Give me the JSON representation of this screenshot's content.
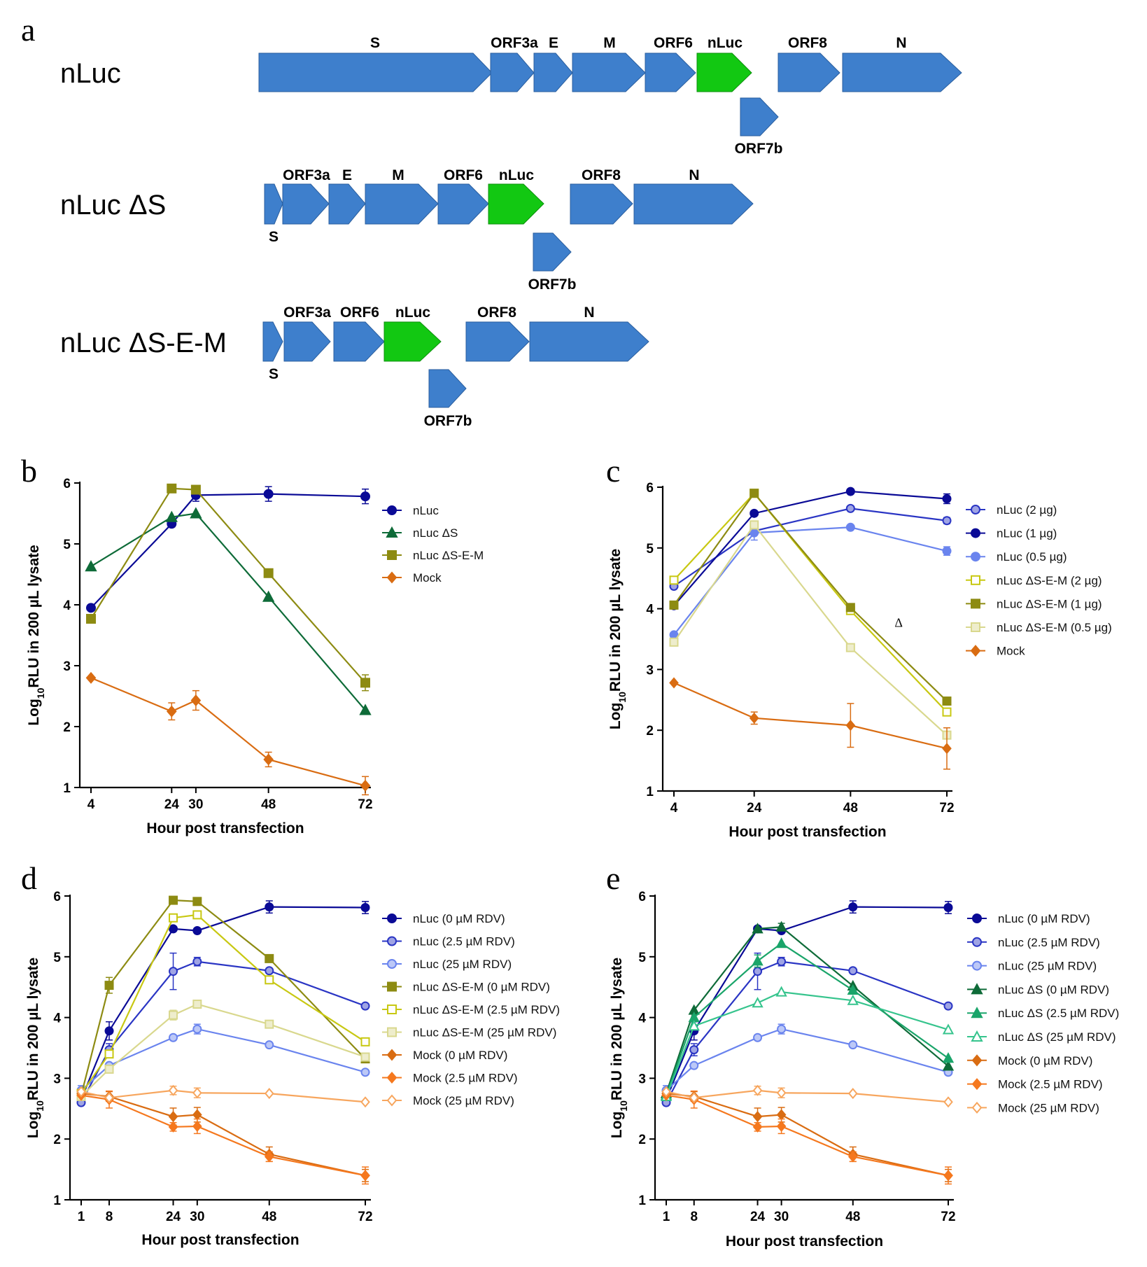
{
  "figure": {
    "panel_a_label": "a",
    "constructs": [
      {
        "name": "nLuc",
        "genes": [
          "S",
          "ORF3a",
          "E",
          "M",
          "ORF6",
          "nLuc",
          "ORF7b",
          "ORF8",
          "N"
        ]
      },
      {
        "name": "nLuc ΔS",
        "genes": [
          "S",
          "ORF3a",
          "E",
          "M",
          "ORF6",
          "nLuc",
          "ORF7b",
          "ORF8",
          "N"
        ]
      },
      {
        "name": "nLuc ΔS-E-M",
        "genes": [
          "S",
          "ORF3a",
          "ORF6",
          "nLuc",
          "ORF7b",
          "ORF8",
          "N"
        ]
      }
    ],
    "colors": {
      "gene": "#3e7fcc",
      "reporter": "#12c812"
    }
  },
  "chart_data": [
    {
      "panel": "b",
      "type": "line",
      "xlabel": "Hour post transfection",
      "ylabel_main": "Log",
      "ylabel_sub": "10",
      "ylabel_rest": "RLU in 200 µL lysate",
      "ylim": [
        1,
        6
      ],
      "yticks": [
        "1",
        "2",
        "3",
        "4",
        "5",
        "6"
      ],
      "xlim": [
        4,
        72
      ],
      "xticks": [
        4,
        24,
        30,
        48,
        72
      ],
      "xtick_labels": [
        "4",
        "24",
        "30",
        "48",
        "72"
      ],
      "series": [
        {
          "name": "nLuc",
          "color": "#0a0a96",
          "marker": "circle",
          "fill": true,
          "x": [
            4,
            24,
            30,
            48,
            72
          ],
          "values": [
            3.95,
            5.33,
            5.8,
            5.82,
            5.78
          ],
          "err": [
            0.05,
            0.05,
            0.1,
            0.12,
            0.12
          ]
        },
        {
          "name": "nLuc ΔS",
          "color": "#0e6b38",
          "marker": "triangle",
          "fill": true,
          "x": [
            4,
            24,
            30,
            48,
            72
          ],
          "values": [
            4.63,
            5.44,
            5.5,
            4.13,
            2.27
          ],
          "err": [
            0,
            0,
            0,
            0,
            0
          ]
        },
        {
          "name": "nLuc ΔS-E-M",
          "color": "#8d8b12",
          "marker": "square",
          "fill": true,
          "x": [
            4,
            24,
            30,
            48,
            72
          ],
          "values": [
            3.77,
            5.91,
            5.89,
            4.52,
            2.72
          ],
          "err": [
            0,
            0,
            0,
            0,
            0.13
          ]
        },
        {
          "name": "Mock",
          "color": "#d96c12",
          "marker": "diamond",
          "fill": true,
          "x": [
            4,
            24,
            30,
            48,
            72
          ],
          "values": [
            2.8,
            2.25,
            2.43,
            1.46,
            1.03
          ],
          "err": [
            0,
            0.14,
            0.16,
            0.12,
            0.15
          ]
        }
      ]
    },
    {
      "panel": "c",
      "type": "line",
      "xlabel": "Hour post transfection",
      "ylabel_main": "Log",
      "ylabel_sub": "10",
      "ylabel_rest": "RLU in 200 µL lysate",
      "ylim": [
        1,
        6
      ],
      "yticks": [
        "1",
        "2",
        "3",
        "4",
        "5",
        "6"
      ],
      "xlim": [
        4,
        72
      ],
      "xticks": [
        4,
        24,
        48,
        72
      ],
      "xtick_labels": [
        "4",
        "24",
        "48",
        "72"
      ],
      "annotation": {
        "text": "Δ",
        "x": 60,
        "y": 3.7
      },
      "series": [
        {
          "name": "nLuc (2 µg)",
          "color": "#2a35c4",
          "marker": "circle",
          "fill": "light",
          "x": [
            4,
            24,
            48,
            72
          ],
          "values": [
            4.37,
            5.28,
            5.65,
            5.45
          ],
          "err": [
            0,
            0,
            0,
            0.05
          ]
        },
        {
          "name": "nLuc (1 µg)",
          "color": "#0a0a96",
          "marker": "circle",
          "fill": true,
          "x": [
            4,
            24,
            48,
            72
          ],
          "values": [
            4.05,
            5.57,
            5.93,
            5.81
          ],
          "err": [
            0,
            0,
            0,
            0.08
          ]
        },
        {
          "name": "nLuc (0.5 µg)",
          "color": "#6a84ee",
          "marker": "circle",
          "fill": true,
          "x": [
            4,
            24,
            48,
            72
          ],
          "values": [
            3.57,
            5.25,
            5.34,
            4.95
          ],
          "err": [
            0,
            0.12,
            0,
            0.07
          ]
        },
        {
          "name": "nLuc ΔS-E-M (2 µg)",
          "color": "#c8c812",
          "marker": "square",
          "fill": false,
          "x": [
            4,
            24,
            48,
            72
          ],
          "values": [
            4.47,
            5.9,
            3.97,
            2.3
          ],
          "err": [
            0,
            0,
            0,
            0
          ]
        },
        {
          "name": "nLuc ΔS-E-M (1 µg)",
          "color": "#8d8b12",
          "marker": "square",
          "fill": true,
          "x": [
            4,
            24,
            48,
            72
          ],
          "values": [
            4.06,
            5.9,
            4.02,
            2.48
          ],
          "err": [
            0,
            0.05,
            0,
            0
          ]
        },
        {
          "name": "nLuc ΔS-E-M (0.5 µg)",
          "color": "#d9d88e",
          "marker": "square",
          "fill": "light",
          "x": [
            4,
            24,
            48,
            72
          ],
          "values": [
            3.45,
            5.38,
            3.36,
            1.92
          ],
          "err": [
            0,
            0,
            0,
            0
          ]
        },
        {
          "name": "Mock",
          "color": "#d96c12",
          "marker": "diamond",
          "fill": true,
          "x": [
            4,
            24,
            48,
            72
          ],
          "values": [
            2.78,
            2.2,
            2.08,
            1.7
          ],
          "err": [
            0,
            0.1,
            0.36,
            0.34
          ]
        }
      ]
    },
    {
      "panel": "d",
      "type": "line",
      "xlabel": "Hour post transfection",
      "ylabel_main": "Log",
      "ylabel_sub": "10",
      "ylabel_rest": "RLU in 200 µL lysate",
      "ylim": [
        1,
        6
      ],
      "yticks": [
        "1",
        "2",
        "3",
        "4",
        "5",
        "6"
      ],
      "xlim": [
        1,
        72
      ],
      "xticks": [
        1,
        8,
        24,
        30,
        48,
        72
      ],
      "xtick_labels": [
        "1",
        "8",
        "24",
        "30",
        "48",
        "72"
      ],
      "series": [
        {
          "name": "nLuc (0 µM RDV)",
          "color": "#0a0a96",
          "marker": "circle",
          "fill": true,
          "x": [
            1,
            8,
            24,
            30,
            48,
            72
          ],
          "values": [
            2.65,
            3.78,
            5.46,
            5.43,
            5.82,
            5.81
          ],
          "err": [
            0,
            0.15,
            0,
            0,
            0.1,
            0.1
          ]
        },
        {
          "name": "nLuc (2.5 µM RDV)",
          "color": "#2a35c4",
          "marker": "circle",
          "fill": "light",
          "x": [
            1,
            8,
            24,
            30,
            48,
            72
          ],
          "values": [
            2.6,
            3.47,
            4.76,
            4.92,
            4.77,
            4.19
          ],
          "err": [
            0,
            0.1,
            0.3,
            0.07,
            0,
            0
          ]
        },
        {
          "name": "nLuc (25 µM RDV)",
          "color": "#6a84ee",
          "marker": "circle",
          "fill": "light",
          "x": [
            1,
            8,
            24,
            30,
            48,
            72
          ],
          "values": [
            2.8,
            3.21,
            3.67,
            3.81,
            3.55,
            3.1
          ],
          "err": [
            0.08,
            0,
            0,
            0.08,
            0,
            0
          ]
        },
        {
          "name": "nLuc ΔS-E-M (0 µM RDV)",
          "color": "#8d8b12",
          "marker": "square",
          "fill": true,
          "x": [
            1,
            8,
            24,
            30,
            48,
            72
          ],
          "values": [
            2.72,
            4.53,
            5.93,
            5.91,
            4.97,
            3.32
          ],
          "err": [
            0,
            0.13,
            0,
            0,
            0,
            0
          ]
        },
        {
          "name": "nLuc ΔS-E-M (2.5 µM RDV)",
          "color": "#c8c812",
          "marker": "square",
          "fill": false,
          "x": [
            1,
            8,
            24,
            30,
            48,
            72
          ],
          "values": [
            2.75,
            3.4,
            5.64,
            5.69,
            4.62,
            3.6
          ],
          "err": [
            0,
            0,
            0,
            0,
            0,
            0
          ]
        },
        {
          "name": "nLuc ΔS-E-M (25 µM RDV)",
          "color": "#d9d88e",
          "marker": "square",
          "fill": "light",
          "x": [
            1,
            8,
            24,
            30,
            48,
            72
          ],
          "values": [
            2.7,
            3.15,
            4.04,
            4.22,
            3.89,
            3.35
          ],
          "err": [
            0,
            0,
            0.08,
            0,
            0,
            0
          ]
        },
        {
          "name": "Mock (0 µM RDV)",
          "color": "#d96c12",
          "marker": "diamond",
          "fill": true,
          "x": [
            1,
            8,
            24,
            30,
            48,
            72
          ],
          "values": [
            2.75,
            2.7,
            2.37,
            2.4,
            1.75,
            1.4
          ],
          "err": [
            0,
            0.08,
            0.14,
            0.12,
            0.12,
            0.1
          ]
        },
        {
          "name": "Mock (2.5 µM RDV)",
          "color": "#f5781e",
          "marker": "diamond",
          "fill": true,
          "x": [
            1,
            8,
            24,
            30,
            48,
            72
          ],
          "values": [
            2.72,
            2.65,
            2.2,
            2.21,
            1.71,
            1.4
          ],
          "err": [
            0,
            0.14,
            0.07,
            0.12,
            0.08,
            0.14
          ]
        },
        {
          "name": "Mock (25 µM RDV)",
          "color": "#f7a65e",
          "marker": "diamond",
          "fill": false,
          "x": [
            1,
            8,
            24,
            30,
            48,
            72
          ],
          "values": [
            2.78,
            2.68,
            2.8,
            2.76,
            2.75,
            2.61
          ],
          "err": [
            0,
            0,
            0.07,
            0.08,
            0,
            0
          ]
        }
      ]
    },
    {
      "panel": "e",
      "type": "line",
      "xlabel": "Hour post transfection",
      "ylabel_main": "Log",
      "ylabel_sub": "10",
      "ylabel_rest": "RLU in 200 µL lysate",
      "ylim": [
        1,
        6
      ],
      "yticks": [
        "1",
        "2",
        "3",
        "4",
        "5",
        "6"
      ],
      "xlim": [
        1,
        72
      ],
      "xticks": [
        1,
        8,
        24,
        30,
        48,
        72
      ],
      "xtick_labels": [
        "1",
        "8",
        "24",
        "30",
        "48",
        "72"
      ],
      "series": [
        {
          "name": "nLuc (0 µM RDV)",
          "color": "#0a0a96",
          "marker": "circle",
          "fill": true,
          "x": [
            1,
            8,
            24,
            30,
            48,
            72
          ],
          "values": [
            2.65,
            3.78,
            5.46,
            5.43,
            5.82,
            5.81
          ],
          "err": [
            0,
            0.15,
            0,
            0,
            0.1,
            0.1
          ]
        },
        {
          "name": "nLuc (2.5 µM RDV)",
          "color": "#2a35c4",
          "marker": "circle",
          "fill": "light",
          "x": [
            1,
            8,
            24,
            30,
            48,
            72
          ],
          "values": [
            2.6,
            3.47,
            4.76,
            4.92,
            4.77,
            4.19
          ],
          "err": [
            0,
            0.1,
            0.3,
            0.07,
            0,
            0
          ]
        },
        {
          "name": "nLuc (25 µM RDV)",
          "color": "#6a84ee",
          "marker": "circle",
          "fill": "light",
          "x": [
            1,
            8,
            24,
            30,
            48,
            72
          ],
          "values": [
            2.8,
            3.21,
            3.67,
            3.81,
            3.55,
            3.1
          ],
          "err": [
            0.08,
            0,
            0,
            0.08,
            0,
            0
          ]
        },
        {
          "name": "nLuc ΔS (0 µM RDV)",
          "color": "#0e6b38",
          "marker": "triangle",
          "fill": true,
          "x": [
            1,
            8,
            24,
            30,
            48,
            72
          ],
          "values": [
            2.75,
            4.12,
            5.46,
            5.49,
            4.52,
            3.2
          ],
          "err": [
            0,
            0,
            0,
            0.06,
            0,
            0
          ]
        },
        {
          "name": "nLuc ΔS (2.5 µM RDV)",
          "color": "#1aa56a",
          "marker": "triangle",
          "fill": true,
          "x": [
            1,
            8,
            24,
            30,
            48,
            72
          ],
          "values": [
            2.72,
            4.0,
            4.93,
            5.22,
            4.45,
            3.33
          ],
          "err": [
            0,
            0,
            0.1,
            0,
            0,
            0
          ]
        },
        {
          "name": "nLuc ΔS (25 µM RDV)",
          "color": "#36c48d",
          "marker": "triangle",
          "fill": false,
          "x": [
            1,
            8,
            24,
            30,
            48,
            72
          ],
          "values": [
            2.7,
            3.86,
            4.24,
            4.42,
            4.28,
            3.8
          ],
          "err": [
            0,
            0,
            0,
            0,
            0,
            0
          ]
        },
        {
          "name": "Mock (0 µM RDV)",
          "color": "#d96c12",
          "marker": "diamond",
          "fill": true,
          "x": [
            1,
            8,
            24,
            30,
            48,
            72
          ],
          "values": [
            2.75,
            2.7,
            2.37,
            2.4,
            1.75,
            1.4
          ],
          "err": [
            0,
            0.08,
            0.14,
            0.12,
            0.12,
            0.1
          ]
        },
        {
          "name": "Mock (2.5 µM RDV)",
          "color": "#f5781e",
          "marker": "diamond",
          "fill": true,
          "x": [
            1,
            8,
            24,
            30,
            48,
            72
          ],
          "values": [
            2.72,
            2.65,
            2.2,
            2.21,
            1.71,
            1.4
          ],
          "err": [
            0,
            0.14,
            0.07,
            0.12,
            0.08,
            0.14
          ]
        },
        {
          "name": "Mock (25 µM RDV)",
          "color": "#f7a65e",
          "marker": "diamond",
          "fill": false,
          "x": [
            1,
            8,
            24,
            30,
            48,
            72
          ],
          "values": [
            2.78,
            2.68,
            2.8,
            2.76,
            2.75,
            2.61
          ],
          "err": [
            0,
            0,
            0.07,
            0.08,
            0,
            0
          ]
        }
      ]
    }
  ]
}
